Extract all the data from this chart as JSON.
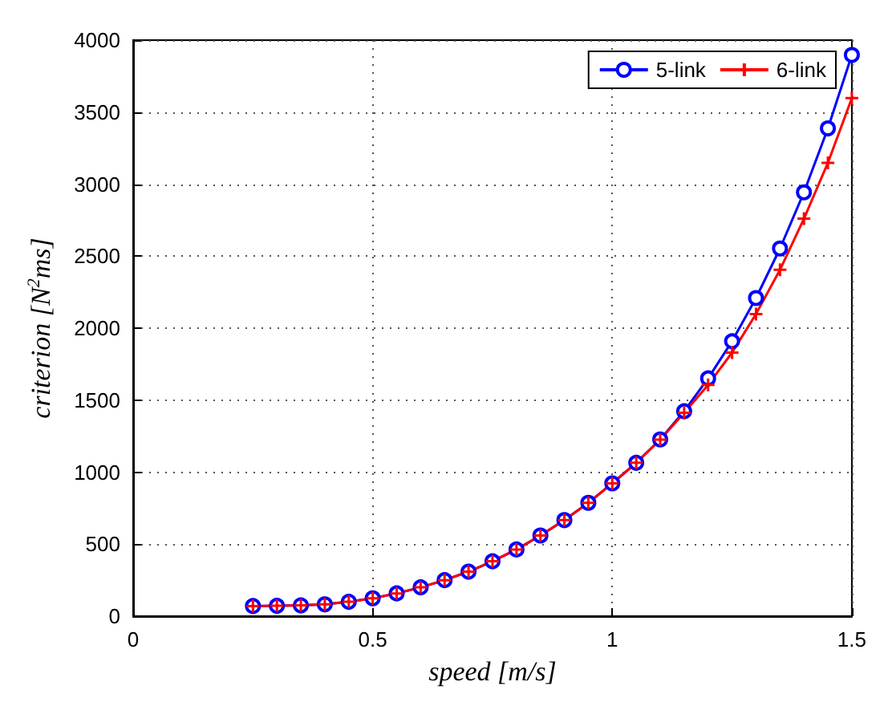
{
  "chart_data": {
    "type": "line",
    "xlabel": "speed [m/s]",
    "ylabel": "criterion [N$^{2}$ms]",
    "xlim": [
      0,
      1.5
    ],
    "xticks": [
      0,
      0.5,
      1,
      1.5
    ],
    "ylim": [
      0,
      4000
    ],
    "yticks": [
      0,
      500,
      1000,
      1500,
      2000,
      2500,
      3000,
      3500,
      4000
    ],
    "x": [
      0.25,
      0.3,
      0.35,
      0.4,
      0.45,
      0.5,
      0.55,
      0.6,
      0.65,
      0.7,
      0.75,
      0.8,
      0.85,
      0.9,
      0.95,
      1.0,
      1.05,
      1.1,
      1.15,
      1.2,
      1.25,
      1.3,
      1.35,
      1.4,
      1.45,
      1.5
    ],
    "grid": true,
    "legend": "top right",
    "series": [
      {
        "name": "5-link",
        "color": "#0000ff",
        "marker": "circle",
        "values": [
          70,
          72,
          75,
          82,
          100,
          124,
          158,
          200,
          250,
          309,
          381,
          463,
          560,
          667,
          787,
          922,
          1065,
          1227,
          1423,
          1651,
          1909,
          2209,
          2553,
          2943,
          3387,
          3897
        ]
      },
      {
        "name": "6-link",
        "color": "#ff0000",
        "marker": "cross",
        "values": [
          70,
          72,
          75,
          82,
          100,
          124,
          158,
          200,
          250,
          309,
          381,
          463,
          560,
          667,
          787,
          922,
          1065,
          1225,
          1412,
          1606,
          1830,
          2098,
          2405,
          2760,
          3148,
          3597
        ]
      }
    ]
  }
}
